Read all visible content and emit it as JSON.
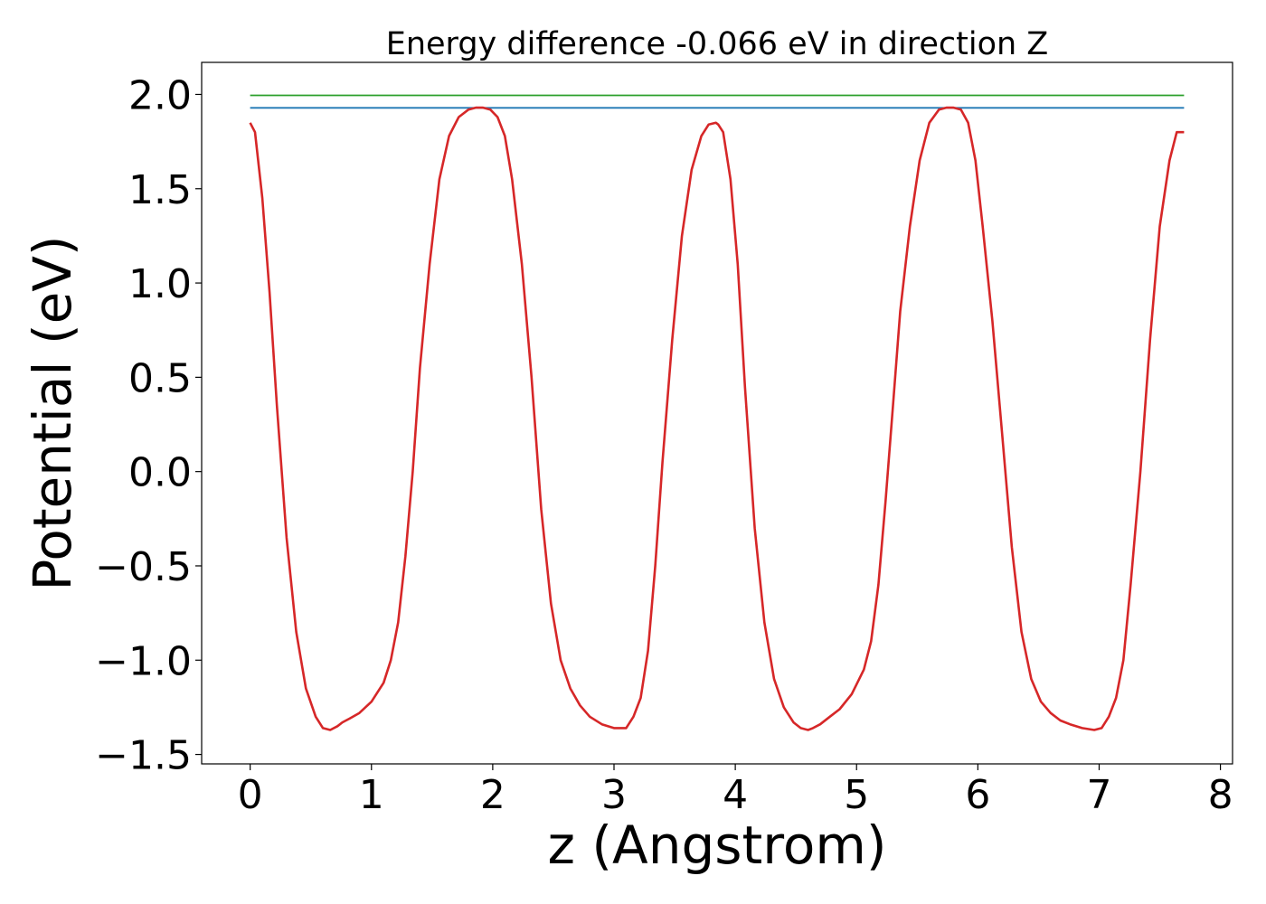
{
  "chart_data": {
    "type": "line",
    "title": "Energy difference -0.066 eV in direction Z",
    "xlabel": "z (Angstrom)",
    "ylabel": "Potential (eV)",
    "xlim": [
      -0.4,
      8.1
    ],
    "ylim": [
      -1.55,
      2.17
    ],
    "xticks": [
      0,
      1,
      2,
      3,
      4,
      5,
      6,
      7,
      8
    ],
    "xtick_labels": [
      "0",
      "1",
      "2",
      "3",
      "4",
      "5",
      "6",
      "7",
      "8"
    ],
    "yticks": [
      2.0,
      1.5,
      1.0,
      0.5,
      0.0,
      -0.5,
      -1.0,
      -1.5
    ],
    "ytick_labels": [
      "2.0",
      "1.5",
      "1.0",
      "0.5",
      "0.0",
      "−0.5",
      "−1.0",
      "−1.5"
    ],
    "grid": false,
    "colors": {
      "potential": "#d62728",
      "level_high": "#2ca02c",
      "level_low": "#1f77b4"
    },
    "series": [
      {
        "key": "potential",
        "x": [
          0.0,
          0.04,
          0.1,
          0.16,
          0.22,
          0.3,
          0.38,
          0.46,
          0.54,
          0.6,
          0.66,
          0.72,
          0.76,
          0.82,
          0.9,
          1.0,
          1.1,
          1.16,
          1.22,
          1.28,
          1.34,
          1.4,
          1.48,
          1.56,
          1.64,
          1.72,
          1.8,
          1.86,
          1.92,
          1.98,
          2.04,
          2.1,
          2.16,
          2.24,
          2.32,
          2.4,
          2.48,
          2.56,
          2.64,
          2.72,
          2.8,
          2.9,
          3.0,
          3.1,
          3.16,
          3.22,
          3.28,
          3.34,
          3.4,
          3.48,
          3.56,
          3.64,
          3.72,
          3.78,
          3.84,
          3.86,
          3.9,
          3.96,
          4.02,
          4.08,
          4.16,
          4.24,
          4.32,
          4.4,
          4.48,
          4.54,
          4.6,
          4.64,
          4.7,
          4.78,
          4.86,
          4.96,
          5.06,
          5.12,
          5.18,
          5.24,
          5.3,
          5.36,
          5.44,
          5.52,
          5.6,
          5.68,
          5.74,
          5.8,
          5.86,
          5.92,
          5.98,
          6.04,
          6.12,
          6.2,
          6.28,
          6.36,
          6.44,
          6.52,
          6.6,
          6.68,
          6.76,
          6.86,
          6.96,
          7.02,
          7.08,
          7.14,
          7.2,
          7.26,
          7.34,
          7.42,
          7.5,
          7.58,
          7.64,
          7.7
        ],
        "y": [
          1.85,
          1.8,
          1.45,
          0.95,
          0.35,
          -0.35,
          -0.85,
          -1.15,
          -1.3,
          -1.36,
          -1.37,
          -1.35,
          -1.33,
          -1.31,
          -1.28,
          -1.22,
          -1.12,
          -1.0,
          -0.8,
          -0.45,
          0.0,
          0.55,
          1.1,
          1.55,
          1.78,
          1.88,
          1.92,
          1.93,
          1.93,
          1.92,
          1.88,
          1.78,
          1.55,
          1.1,
          0.5,
          -0.2,
          -0.7,
          -1.0,
          -1.15,
          -1.24,
          -1.3,
          -1.34,
          -1.36,
          -1.36,
          -1.3,
          -1.2,
          -0.95,
          -0.5,
          0.05,
          0.7,
          1.25,
          1.6,
          1.78,
          1.84,
          1.85,
          1.84,
          1.8,
          1.55,
          1.1,
          0.45,
          -0.3,
          -0.8,
          -1.1,
          -1.25,
          -1.33,
          -1.36,
          -1.37,
          -1.36,
          -1.34,
          -1.3,
          -1.26,
          -1.18,
          -1.05,
          -0.9,
          -0.6,
          -0.15,
          0.35,
          0.85,
          1.3,
          1.65,
          1.85,
          1.92,
          1.93,
          1.93,
          1.92,
          1.85,
          1.65,
          1.3,
          0.8,
          0.2,
          -0.4,
          -0.85,
          -1.1,
          -1.22,
          -1.28,
          -1.32,
          -1.34,
          -1.36,
          -1.37,
          -1.36,
          -1.3,
          -1.2,
          -1.0,
          -0.6,
          0.0,
          0.7,
          1.3,
          1.65,
          1.8,
          1.8
        ]
      },
      {
        "key": "level_high",
        "x": [
          0.0,
          7.7
        ],
        "y": [
          1.995,
          1.995
        ]
      },
      {
        "key": "level_low",
        "x": [
          0.0,
          7.7
        ],
        "y": [
          1.929,
          1.929
        ]
      }
    ]
  }
}
